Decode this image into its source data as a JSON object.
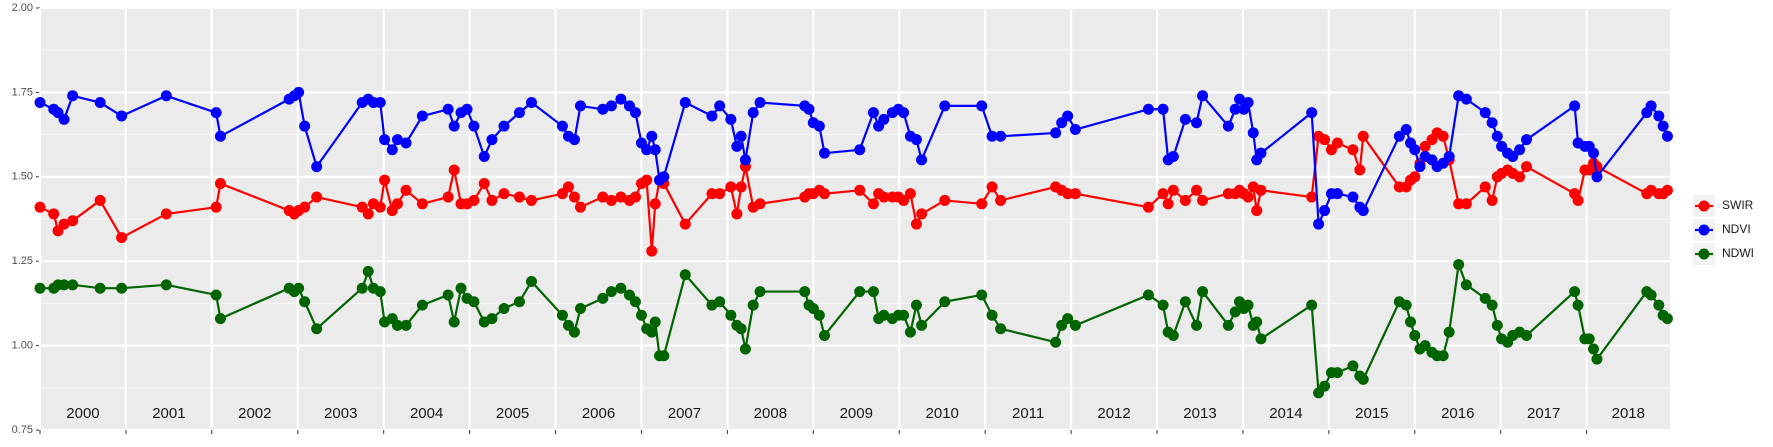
{
  "chart_data": {
    "type": "line",
    "x": [
      2000.0,
      2000.16,
      2000.21,
      2000.28,
      2000.38,
      2000.7,
      2000.95,
      2001.47,
      2002.05,
      2002.1,
      2002.9,
      2002.96,
      2003.01,
      2003.08,
      2003.22,
      2003.75,
      2003.82,
      2003.88,
      2003.96,
      2004.01,
      2004.1,
      2004.16,
      2004.26,
      2004.45,
      2004.75,
      2004.82,
      2004.9,
      2004.97,
      2005.05,
      2005.17,
      2005.26,
      2005.4,
      2005.58,
      2005.72,
      2006.08,
      2006.15,
      2006.22,
      2006.29,
      2006.55,
      2006.65,
      2006.76,
      2006.86,
      2006.93,
      2007.0,
      2007.06,
      2007.12,
      2007.16,
      2007.21,
      2007.26,
      2007.51,
      2007.82,
      2007.91,
      2008.04,
      2008.11,
      2008.16,
      2008.21,
      2008.3,
      2008.38,
      2008.9,
      2008.95,
      2009.0,
      2009.07,
      2009.13,
      2009.54,
      2009.7,
      2009.76,
      2009.82,
      2009.92,
      2009.99,
      2010.05,
      2010.13,
      2010.2,
      2010.26,
      2010.53,
      2010.96,
      2011.08,
      2011.18,
      2011.82,
      2011.89,
      2011.96,
      2012.05,
      2012.9,
      2013.07,
      2013.13,
      2013.19,
      2013.33,
      2013.46,
      2013.53,
      2013.83,
      2013.91,
      2013.96,
      2014.01,
      2014.06,
      2014.12,
      2014.16,
      2014.21,
      2014.8,
      2014.88,
      2014.95,
      2015.03,
      2015.1,
      2015.28,
      2015.36,
      2015.4,
      2015.82,
      2015.9,
      2015.95,
      2016.0,
      2016.06,
      2016.12,
      2016.2,
      2016.26,
      2016.33,
      2016.4,
      2016.51,
      2016.6,
      2016.82,
      2016.9,
      2016.96,
      2017.01,
      2017.08,
      2017.14,
      2017.22,
      2017.3,
      2017.86,
      2017.9,
      2017.98,
      2018.03,
      2018.08,
      2018.12,
      2018.7,
      2018.75,
      2018.84,
      2018.89,
      2018.94
    ],
    "series": [
      {
        "name": "SWIR",
        "color": "#ff0000",
        "values": [
          1.41,
          1.39,
          1.34,
          1.36,
          1.37,
          1.43,
          1.32,
          1.39,
          1.41,
          1.48,
          1.4,
          1.39,
          1.4,
          1.41,
          1.44,
          1.41,
          1.39,
          1.42,
          1.41,
          1.49,
          1.4,
          1.42,
          1.46,
          1.42,
          1.44,
          1.52,
          1.42,
          1.42,
          1.43,
          1.48,
          1.43,
          1.45,
          1.44,
          1.43,
          1.45,
          1.47,
          1.44,
          1.41,
          1.44,
          1.43,
          1.44,
          1.43,
          1.44,
          1.48,
          1.49,
          1.28,
          1.42,
          1.49,
          1.48,
          1.36,
          1.45,
          1.45,
          1.47,
          1.39,
          1.47,
          1.53,
          1.41,
          1.42,
          1.44,
          1.45,
          1.45,
          1.46,
          1.45,
          1.46,
          1.42,
          1.45,
          1.44,
          1.44,
          1.44,
          1.43,
          1.45,
          1.36,
          1.39,
          1.43,
          1.42,
          1.47,
          1.43,
          1.47,
          1.46,
          1.45,
          1.45,
          1.41,
          1.45,
          1.42,
          1.46,
          1.43,
          1.46,
          1.43,
          1.45,
          1.45,
          1.46,
          1.45,
          1.44,
          1.47,
          1.4,
          1.46,
          1.44,
          1.62,
          1.61,
          1.58,
          1.6,
          1.58,
          1.52,
          1.62,
          1.47,
          1.47,
          1.49,
          1.5,
          1.54,
          1.59,
          1.61,
          1.63,
          1.62,
          1.55,
          1.42,
          1.42,
          1.47,
          1.43,
          1.5,
          1.51,
          1.52,
          1.51,
          1.5,
          1.53,
          1.45,
          1.43,
          1.52,
          1.52,
          1.54,
          1.53,
          1.45,
          1.46,
          1.45,
          1.45,
          1.46
        ]
      },
      {
        "name": "NDVI",
        "color": "#0000ff",
        "values": [
          1.72,
          1.7,
          1.69,
          1.67,
          1.74,
          1.72,
          1.68,
          1.74,
          1.69,
          1.62,
          1.73,
          1.74,
          1.75,
          1.65,
          1.53,
          1.72,
          1.73,
          1.72,
          1.72,
          1.61,
          1.58,
          1.61,
          1.6,
          1.68,
          1.7,
          1.65,
          1.69,
          1.7,
          1.65,
          1.56,
          1.61,
          1.65,
          1.69,
          1.72,
          1.65,
          1.62,
          1.61,
          1.71,
          1.7,
          1.71,
          1.73,
          1.71,
          1.69,
          1.6,
          1.58,
          1.62,
          1.58,
          1.49,
          1.5,
          1.72,
          1.68,
          1.71,
          1.67,
          1.59,
          1.62,
          1.55,
          1.69,
          1.72,
          1.71,
          1.7,
          1.66,
          1.65,
          1.57,
          1.58,
          1.69,
          1.65,
          1.67,
          1.69,
          1.7,
          1.69,
          1.62,
          1.61,
          1.55,
          1.71,
          1.71,
          1.62,
          1.62,
          1.63,
          1.66,
          1.68,
          1.64,
          1.7,
          1.7,
          1.55,
          1.56,
          1.67,
          1.66,
          1.74,
          1.65,
          1.7,
          1.73,
          1.7,
          1.72,
          1.63,
          1.55,
          1.57,
          1.69,
          1.36,
          1.4,
          1.45,
          1.45,
          1.44,
          1.41,
          1.4,
          1.62,
          1.64,
          1.6,
          1.58,
          1.53,
          1.56,
          1.55,
          1.53,
          1.54,
          1.56,
          1.74,
          1.73,
          1.69,
          1.66,
          1.62,
          1.59,
          1.57,
          1.56,
          1.58,
          1.61,
          1.71,
          1.6,
          1.59,
          1.59,
          1.57,
          1.5,
          1.69,
          1.71,
          1.68,
          1.65,
          1.62
        ]
      },
      {
        "name": "NDWI",
        "color": "#006400",
        "values": [
          1.17,
          1.17,
          1.18,
          1.18,
          1.18,
          1.17,
          1.17,
          1.18,
          1.15,
          1.08,
          1.17,
          1.16,
          1.17,
          1.13,
          1.05,
          1.17,
          1.22,
          1.17,
          1.16,
          1.07,
          1.08,
          1.06,
          1.06,
          1.12,
          1.15,
          1.07,
          1.17,
          1.14,
          1.13,
          1.07,
          1.08,
          1.11,
          1.13,
          1.19,
          1.09,
          1.06,
          1.04,
          1.11,
          1.14,
          1.16,
          1.17,
          1.15,
          1.13,
          1.09,
          1.05,
          1.04,
          1.07,
          0.97,
          0.97,
          1.21,
          1.12,
          1.13,
          1.09,
          1.06,
          1.05,
          0.99,
          1.12,
          1.16,
          1.16,
          1.12,
          1.11,
          1.09,
          1.03,
          1.16,
          1.16,
          1.08,
          1.09,
          1.08,
          1.09,
          1.09,
          1.04,
          1.12,
          1.06,
          1.13,
          1.15,
          1.09,
          1.05,
          1.01,
          1.06,
          1.08,
          1.06,
          1.15,
          1.12,
          1.04,
          1.03,
          1.13,
          1.06,
          1.16,
          1.06,
          1.1,
          1.13,
          1.11,
          1.12,
          1.06,
          1.07,
          1.02,
          1.12,
          0.86,
          0.88,
          0.92,
          0.92,
          0.94,
          0.91,
          0.9,
          1.13,
          1.12,
          1.07,
          1.03,
          0.99,
          1.0,
          0.98,
          0.97,
          0.97,
          1.04,
          1.24,
          1.18,
          1.14,
          1.12,
          1.06,
          1.02,
          1.01,
          1.03,
          1.04,
          1.03,
          1.16,
          1.12,
          1.02,
          1.02,
          0.99,
          0.96,
          1.16,
          1.15,
          1.12,
          1.09,
          1.08
        ]
      }
    ],
    "xlim": [
      2000,
      2018.97
    ],
    "xticks": [
      2000,
      2001,
      2002,
      2003,
      2004,
      2005,
      2006,
      2007,
      2008,
      2009,
      2010,
      2011,
      2012,
      2013,
      2014,
      2015,
      2016,
      2017,
      2018
    ],
    "ylim": [
      0.75,
      2.0
    ],
    "yticks": [
      {
        "value": 0.75,
        "label": "0.75"
      },
      {
        "value": 1.0,
        "label": "1.00"
      },
      1.25,
      {
        "value": 1.5,
        "label": "1.50"
      },
      1.75,
      {
        "value": 2.0,
        "label": "2.00"
      }
    ],
    "grid": true,
    "legend": "right"
  }
}
